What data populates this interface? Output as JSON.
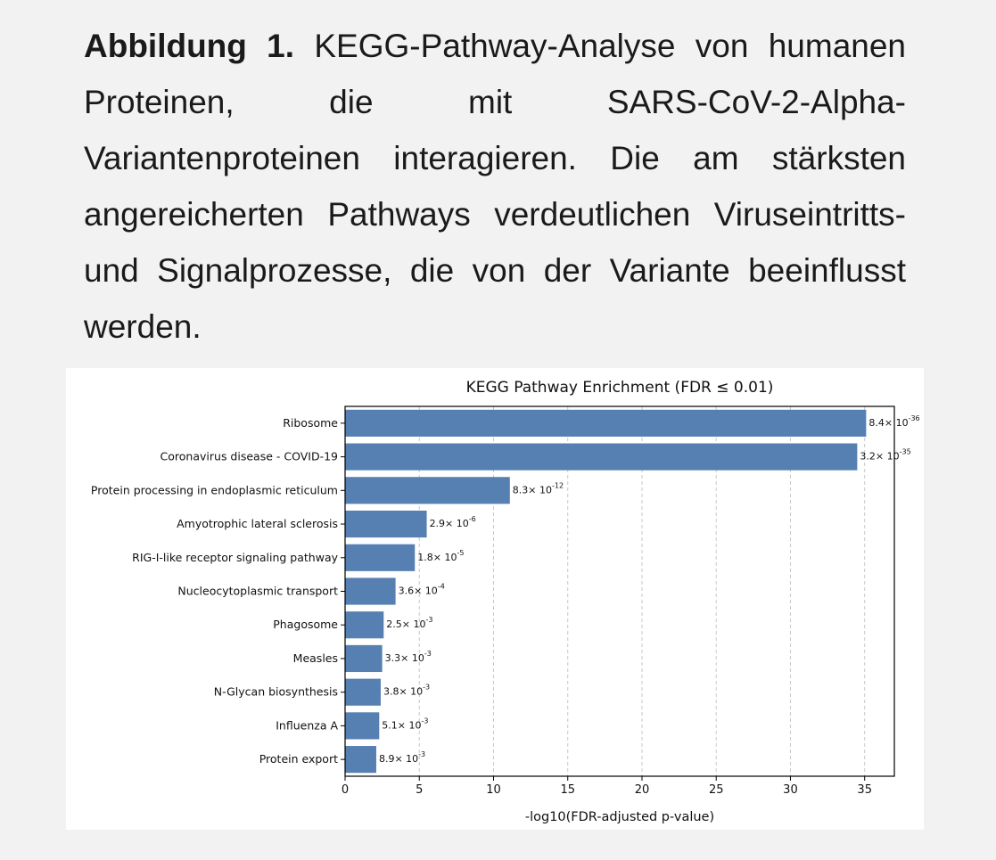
{
  "caption": {
    "label": "Abbildung 1.",
    "text": "KEGG-Pathway-Analyse von humanen Proteinen, die mit SARS-CoV-2-Alpha-Variantenproteinen interagieren. Die am stärksten angereicherten Pathways verdeutlichen Viruseintritts- und Signalprozesse, die von der Variante beeinflusst werden."
  },
  "chart_data": {
    "type": "bar",
    "orientation": "horizontal",
    "title": "KEGG Pathway Enrichment (FDR ≤ 0.01)",
    "xlabel": "-log10(FDR-adjusted p-value)",
    "ylabel": "",
    "xlim": [
      0,
      37
    ],
    "xticks": [
      0,
      5,
      10,
      15,
      20,
      25,
      30,
      35
    ],
    "grid": "vertical-dashed",
    "bar_color": "#5680b1",
    "categories": [
      "Ribosome",
      "Coronavirus disease - COVID-19",
      "Protein processing in endoplasmic reticulum",
      "Amyotrophic lateral sclerosis",
      "RIG-I-like receptor signaling pathway",
      "Nucleocytoplasmic transport",
      "Phagosome",
      "Measles",
      "N-Glycan biosynthesis",
      "Influenza A",
      "Protein export"
    ],
    "values": [
      35.1,
      34.5,
      11.1,
      5.5,
      4.7,
      3.4,
      2.6,
      2.5,
      2.4,
      2.3,
      2.1
    ],
    "labels": [
      {
        "mant": "8.4",
        "exp": "-36"
      },
      {
        "mant": "3.2",
        "exp": "-35"
      },
      {
        "mant": "8.3",
        "exp": "-12"
      },
      {
        "mant": "2.9",
        "exp": "-6"
      },
      {
        "mant": "1.8",
        "exp": "-5"
      },
      {
        "mant": "3.6",
        "exp": "-4"
      },
      {
        "mant": "2.5",
        "exp": "-3"
      },
      {
        "mant": "3.3",
        "exp": "-3"
      },
      {
        "mant": "3.8",
        "exp": "-3"
      },
      {
        "mant": "5.1",
        "exp": "-3"
      },
      {
        "mant": "8.9",
        "exp": "-3"
      }
    ]
  }
}
